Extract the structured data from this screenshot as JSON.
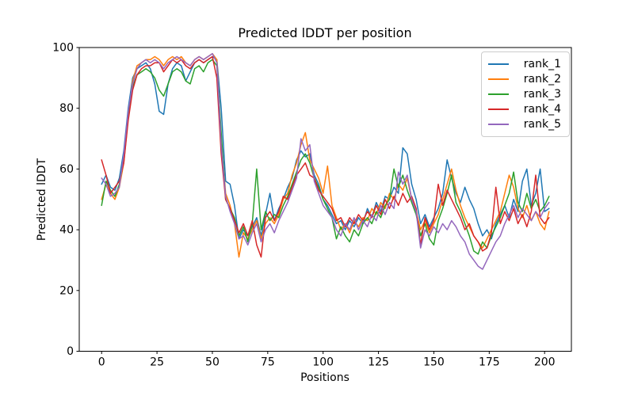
{
  "figure": {
    "background": "#ffffff",
    "spine_color": "#000000"
  },
  "chart_data": {
    "type": "line",
    "title": "Predicted lDDT per position",
    "xlabel": "Positions",
    "ylabel": "Predicted lDDT",
    "xlim": [
      -10.1,
      212.1
    ],
    "ylim": [
      0,
      100
    ],
    "xticks": [
      0,
      25,
      50,
      75,
      100,
      125,
      150,
      175,
      200
    ],
    "yticks": [
      0,
      20,
      40,
      60,
      80,
      100
    ],
    "grid": false,
    "legend_position": "upper right",
    "x": [
      0,
      2,
      4,
      6,
      8,
      10,
      12,
      14,
      16,
      18,
      20,
      22,
      24,
      26,
      28,
      30,
      32,
      34,
      36,
      38,
      40,
      42,
      44,
      46,
      48,
      50,
      52,
      54,
      56,
      58,
      60,
      62,
      64,
      66,
      68,
      70,
      72,
      74,
      76,
      78,
      80,
      82,
      84,
      86,
      88,
      90,
      92,
      94,
      96,
      98,
      100,
      102,
      104,
      106,
      108,
      110,
      112,
      114,
      116,
      118,
      120,
      122,
      124,
      126,
      128,
      130,
      132,
      134,
      136,
      138,
      140,
      142,
      144,
      146,
      148,
      150,
      152,
      154,
      156,
      158,
      160,
      162,
      164,
      166,
      168,
      170,
      172,
      174,
      176,
      178,
      180,
      182,
      184,
      186,
      188,
      190,
      192,
      194,
      196,
      198,
      200,
      202
    ],
    "series": [
      {
        "name": "rank_1",
        "color": "#1f77b4",
        "values": [
          55,
          58,
          54,
          53,
          57,
          66,
          80,
          90,
          93,
          94,
          95,
          93,
          88,
          79,
          78,
          88,
          93,
          95,
          94,
          89,
          92,
          95,
          96,
          95,
          96,
          97,
          96,
          80,
          56,
          55,
          48,
          37,
          40,
          38,
          41,
          44,
          38,
          45,
          52,
          43,
          47,
          50,
          54,
          57,
          63,
          66,
          64,
          65,
          58,
          55,
          50,
          48,
          45,
          42,
          43,
          40,
          43,
          41,
          44,
          42,
          47,
          44,
          49,
          46,
          51,
          50,
          54,
          52,
          67,
          65,
          55,
          50,
          42,
          45,
          41,
          44,
          47,
          52,
          63,
          57,
          52,
          49,
          54,
          50,
          47,
          42,
          38,
          40,
          37,
          42,
          45,
          48,
          44,
          50,
          46,
          56,
          60,
          48,
          52,
          60,
          46,
          47
        ]
      },
      {
        "name": "rank_2",
        "color": "#ff7f0e",
        "values": [
          50,
          55,
          52,
          50,
          54,
          62,
          77,
          89,
          94,
          95,
          96,
          96,
          97,
          96,
          94,
          96,
          97,
          96,
          97,
          95,
          94,
          96,
          97,
          96,
          97,
          98,
          96,
          70,
          52,
          48,
          42,
          31,
          39,
          37,
          40,
          43,
          37,
          42,
          44,
          42,
          45,
          50,
          52,
          58,
          62,
          68,
          72,
          63,
          60,
          57,
          52,
          61,
          48,
          44,
          40,
          42,
          39,
          43,
          41,
          44,
          43,
          47,
          45,
          49,
          47,
          52,
          50,
          55,
          53,
          57,
          50,
          46,
          40,
          43,
          39,
          42,
          45,
          50,
          55,
          60,
          53,
          48,
          44,
          41,
          38,
          36,
          34,
          37,
          40,
          43,
          46,
          52,
          58,
          54,
          47,
          44,
          48,
          43,
          46,
          42,
          40,
          46
        ]
      },
      {
        "name": "rank_3",
        "color": "#2ca02c",
        "values": [
          48,
          56,
          53,
          51,
          55,
          63,
          78,
          87,
          91,
          92,
          93,
          92,
          90,
          86,
          84,
          88,
          92,
          93,
          92,
          89,
          88,
          93,
          94,
          92,
          95,
          96,
          94,
          72,
          50,
          47,
          44,
          38,
          41,
          36,
          42,
          60,
          40,
          46,
          43,
          45,
          44,
          48,
          51,
          55,
          59,
          63,
          65,
          62,
          57,
          54,
          50,
          47,
          44,
          37,
          41,
          38,
          36,
          40,
          38,
          42,
          44,
          42,
          46,
          44,
          48,
          50,
          60,
          54,
          58,
          53,
          49,
          45,
          38,
          42,
          37,
          35,
          43,
          47,
          52,
          58,
          49,
          46,
          42,
          38,
          33,
          32,
          36,
          34,
          38,
          41,
          44,
          48,
          52,
          59,
          49,
          46,
          52,
          47,
          50,
          46,
          48,
          51
        ]
      },
      {
        "name": "rank_4",
        "color": "#d62728",
        "values": [
          63,
          58,
          52,
          54,
          56,
          62,
          76,
          86,
          91,
          93,
          94,
          94,
          95,
          95,
          92,
          94,
          96,
          95,
          96,
          94,
          93,
          95,
          96,
          95,
          96,
          97,
          90,
          65,
          50,
          47,
          43,
          39,
          42,
          38,
          43,
          35,
          31,
          44,
          46,
          43,
          46,
          51,
          50,
          54,
          58,
          60,
          62,
          58,
          57,
          53,
          51,
          49,
          47,
          43,
          44,
          41,
          44,
          42,
          45,
          43,
          46,
          44,
          48,
          45,
          50,
          47,
          51,
          48,
          52,
          49,
          51,
          47,
          35,
          44,
          40,
          43,
          55,
          48,
          53,
          50,
          47,
          44,
          40,
          42,
          38,
          36,
          33,
          34,
          39,
          54,
          42,
          46,
          43,
          47,
          42,
          45,
          41,
          46,
          58,
          44,
          42,
          44
        ]
      },
      {
        "name": "rank_5",
        "color": "#9467bd",
        "values": [
          57,
          55,
          51,
          52,
          54,
          65,
          79,
          88,
          93,
          95,
          96,
          95,
          96,
          95,
          93,
          95,
          96,
          97,
          96,
          95,
          94,
          96,
          97,
          96,
          97,
          98,
          95,
          68,
          51,
          46,
          42,
          37,
          38,
          35,
          39,
          42,
          36,
          40,
          42,
          39,
          43,
          46,
          49,
          53,
          57,
          70,
          66,
          68,
          56,
          52,
          48,
          46,
          44,
          40,
          38,
          42,
          40,
          44,
          40,
          43,
          41,
          45,
          43,
          48,
          45,
          49,
          47,
          59,
          55,
          58,
          50,
          46,
          34,
          40,
          38,
          41,
          39,
          42,
          40,
          43,
          41,
          38,
          36,
          32,
          30,
          28,
          27,
          30,
          33,
          36,
          38,
          42,
          45,
          48,
          44,
          47,
          45,
          43,
          46,
          44,
          47,
          49
        ]
      }
    ]
  }
}
